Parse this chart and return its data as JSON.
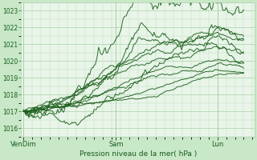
{
  "title": "",
  "xlabel": "Pression niveau de la mer( hPa )",
  "background_color": "#c8e8c8",
  "plot_background": "#e8f5e8",
  "grid_color_major": "#aacfaa",
  "grid_color_minor": "#c0dcc0",
  "line_color": "#1a5c1a",
  "ylim": [
    1015.5,
    1023.5
  ],
  "yticks": [
    1016,
    1017,
    1018,
    1019,
    1020,
    1021,
    1022,
    1023
  ],
  "xtick_labels": [
    "VenDim",
    "Sam",
    "Lun"
  ],
  "xtick_positions": [
    0.0,
    0.42,
    0.88
  ],
  "figsize": [
    3.2,
    2.0
  ],
  "dpi": 100
}
